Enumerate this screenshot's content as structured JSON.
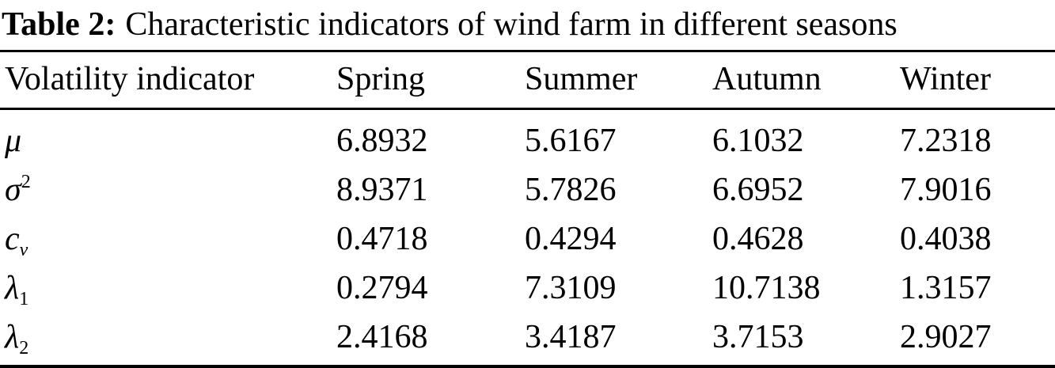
{
  "colors": {
    "background": "#ffffff",
    "ink": "#000000",
    "rule": "#000000"
  },
  "title": {
    "label": "Table 2:",
    "text": "Characteristic indicators of wind farm in different seasons"
  },
  "table": {
    "columns": [
      "Volatility indicator",
      "Spring",
      "Summer",
      "Autumn",
      "Winter"
    ],
    "rows": [
      {
        "indicator": {
          "base": "μ",
          "sup": "",
          "sub": ""
        },
        "values": [
          "6.8932",
          "5.6167",
          "6.1032",
          "7.2318"
        ]
      },
      {
        "indicator": {
          "base": "σ",
          "sup": "2",
          "sub": ""
        },
        "values": [
          "8.9371",
          "5.7826",
          "6.6952",
          "7.9016"
        ]
      },
      {
        "indicator": {
          "base": "c",
          "sup": "",
          "sub": "v"
        },
        "values": [
          "0.4718",
          "0.4294",
          "0.4628",
          "0.4038"
        ]
      },
      {
        "indicator": {
          "base": "λ",
          "sup": "",
          "sub": "1"
        },
        "values": [
          "0.2794",
          "7.3109",
          "10.7138",
          "1.3157"
        ]
      },
      {
        "indicator": {
          "base": "λ",
          "sup": "",
          "sub": "2"
        },
        "values": [
          "2.4168",
          "3.4187",
          "3.7153",
          "2.9027"
        ]
      }
    ]
  }
}
